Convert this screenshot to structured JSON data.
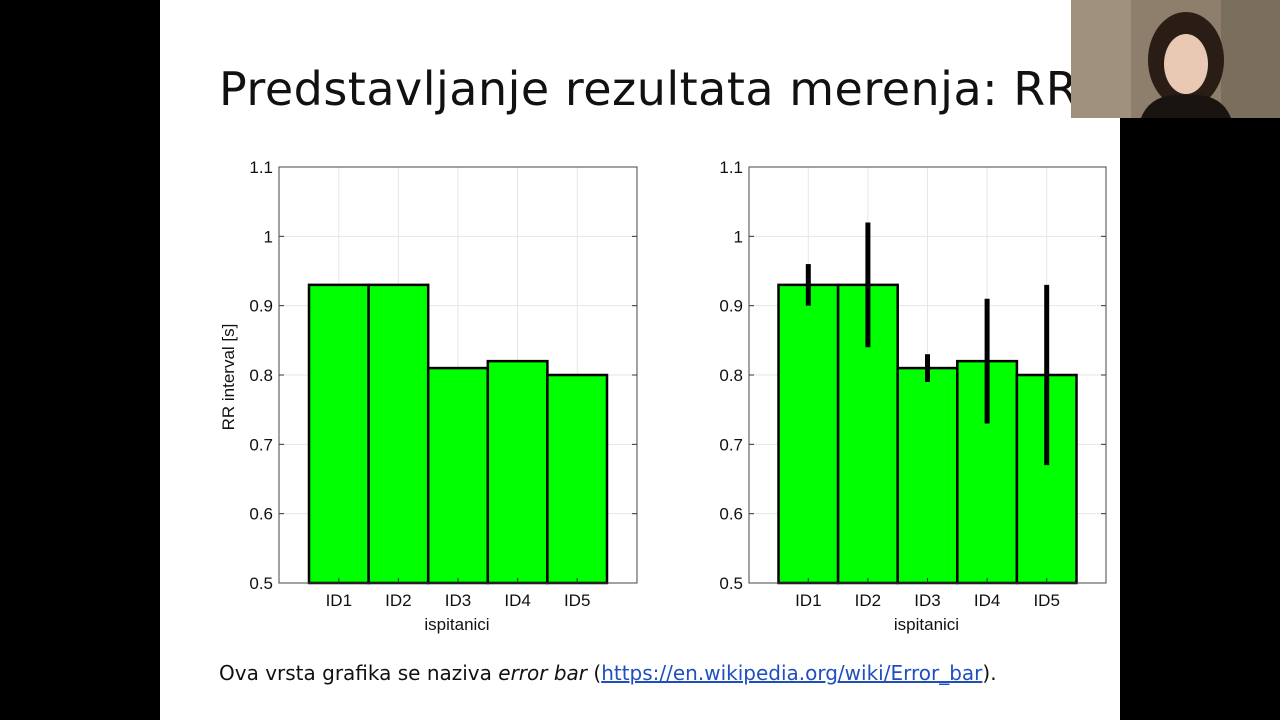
{
  "slide": {
    "title": "Predstavljanje rezultata merenja: RR",
    "footer": {
      "prefix": "Ova vrsta grafika se naziva ",
      "italic": "error bar",
      "open_paren": " (",
      "link": "https://en.wikipedia.org/wiki/Error_bar",
      "close_paren": ")."
    }
  },
  "chart_data": [
    {
      "type": "bar",
      "categories": [
        "ID1",
        "ID2",
        "ID3",
        "ID4",
        "ID5"
      ],
      "values": [
        0.93,
        0.93,
        0.81,
        0.82,
        0.8
      ],
      "xlabel": "ispitanici",
      "ylabel": "RR interval [s]",
      "ylim": [
        0.5,
        1.1
      ],
      "yticks": [
        "0.5",
        "0.6",
        "0.7",
        "0.8",
        "0.9",
        "1",
        "1.1"
      ],
      "bar_color": "#00ff00",
      "grid": true
    },
    {
      "type": "bar",
      "categories": [
        "ID1",
        "ID2",
        "ID3",
        "ID4",
        "ID5"
      ],
      "values": [
        0.93,
        0.93,
        0.81,
        0.82,
        0.8
      ],
      "errors": [
        0.03,
        0.09,
        0.02,
        0.09,
        0.13
      ],
      "xlabel": "ispitanici",
      "ylabel": "",
      "ylim": [
        0.5,
        1.1
      ],
      "yticks": [
        "0.5",
        "0.6",
        "0.7",
        "0.8",
        "0.9",
        "1",
        "1.1"
      ],
      "bar_color": "#00ff00",
      "grid": true
    }
  ]
}
